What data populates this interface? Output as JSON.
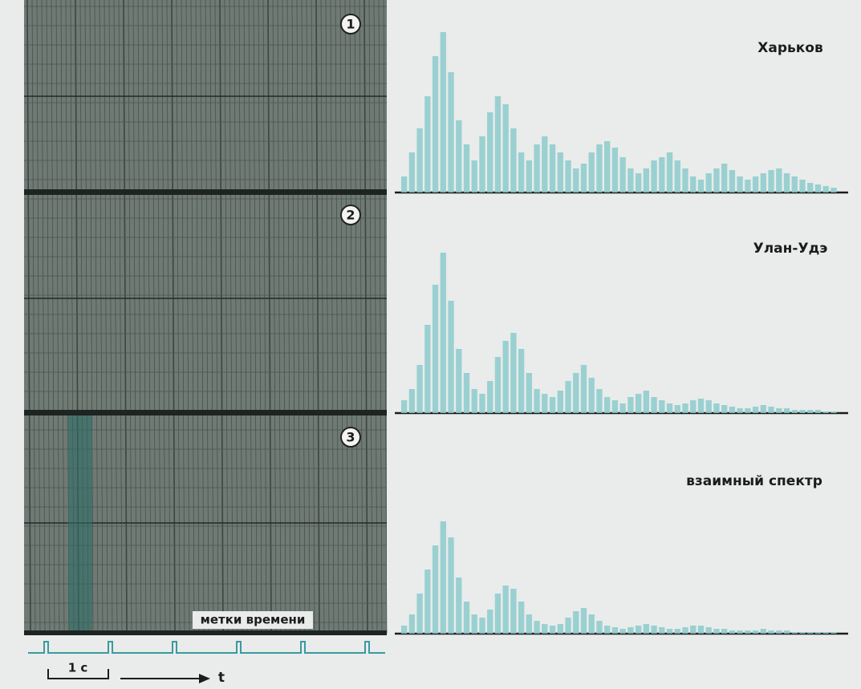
{
  "panels": [
    {
      "number": "1"
    },
    {
      "number": "2"
    },
    {
      "number": "3"
    }
  ],
  "spectra": [
    {
      "label": "Харьков",
      "values": [
        10,
        25,
        40,
        60,
        85,
        100,
        75,
        45,
        30,
        20,
        35,
        50,
        60,
        55,
        40,
        25,
        20,
        30,
        35,
        30,
        25,
        20,
        15,
        18,
        25,
        30,
        32,
        28,
        22,
        15,
        12,
        15,
        20,
        22,
        25,
        20,
        15,
        10,
        8,
        12,
        15,
        18,
        14,
        10,
        8,
        10,
        12,
        14,
        15,
        12,
        10,
        8,
        6,
        5,
        4,
        3
      ]
    },
    {
      "label": "Улан-Удэ",
      "values": [
        8,
        15,
        30,
        55,
        80,
        100,
        70,
        40,
        25,
        15,
        12,
        20,
        35,
        45,
        50,
        40,
        25,
        15,
        12,
        10,
        14,
        20,
        25,
        30,
        22,
        15,
        10,
        8,
        6,
        10,
        12,
        14,
        10,
        8,
        6,
        5,
        6,
        8,
        9,
        8,
        6,
        5,
        4,
        3,
        3,
        4,
        5,
        4,
        3,
        3,
        2,
        2,
        2,
        2,
        1,
        1
      ]
    },
    {
      "label": "взаимный спектр",
      "values": [
        5,
        12,
        25,
        40,
        55,
        70,
        60,
        35,
        20,
        12,
        10,
        15,
        25,
        30,
        28,
        20,
        12,
        8,
        6,
        5,
        6,
        10,
        14,
        16,
        12,
        8,
        5,
        4,
        3,
        4,
        5,
        6,
        5,
        4,
        3,
        3,
        4,
        5,
        5,
        4,
        3,
        3,
        2,
        2,
        2,
        2,
        3,
        2,
        2,
        2,
        1,
        1,
        1,
        1,
        1,
        1
      ]
    }
  ],
  "time_marks_label": "метки времени",
  "scale_label": "1 с",
  "axis_label": "t"
}
